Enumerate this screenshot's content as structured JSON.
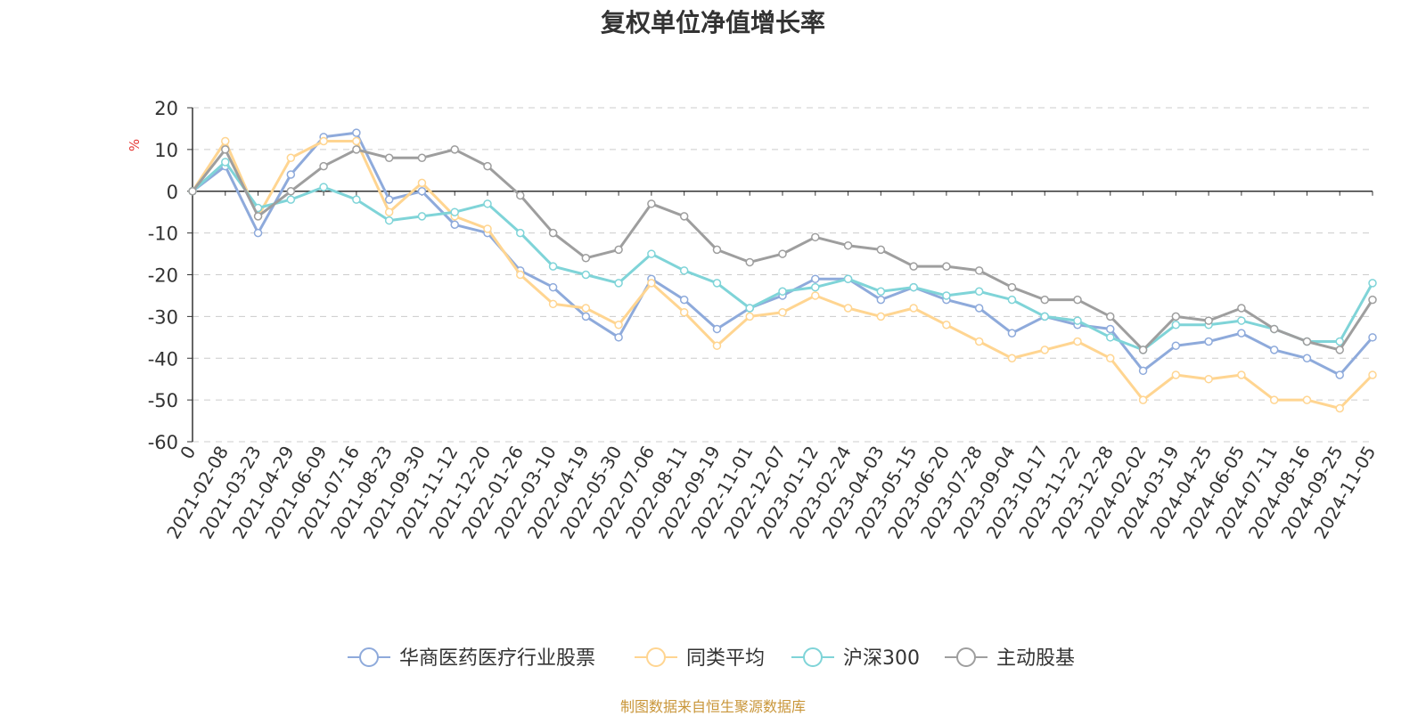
{
  "chart_data": {
    "type": "line",
    "title": "复权单位净值增长率",
    "ylabel": "%",
    "ylim": [
      -60,
      20
    ],
    "yticks": [
      20,
      10,
      0,
      -10,
      -20,
      -30,
      -40,
      -50,
      -60
    ],
    "grid": true,
    "legend_position": "bottom",
    "x_tick_labels": [
      "0",
      "2021-02-08",
      "2021-03-23",
      "2021-04-29",
      "2021-06-09",
      "2021-07-16",
      "2021-08-23",
      "2021-09-30",
      "2021-11-12",
      "2021-12-20",
      "2022-01-26",
      "2022-03-10",
      "2022-04-19",
      "2022-05-30",
      "2022-07-06",
      "2022-08-11",
      "2022-09-19",
      "2022-11-01",
      "2022-12-07",
      "2023-01-12",
      "2023-02-24",
      "2023-04-03",
      "2023-05-15",
      "2023-06-20",
      "2023-07-28",
      "2023-09-04",
      "2023-10-17",
      "2023-11-22",
      "2023-12-28",
      "2024-02-02",
      "2024-03-19",
      "2024-04-25",
      "2024-06-05",
      "2024-07-11",
      "2024-08-16",
      "2024-09-25",
      "2024-11-05"
    ],
    "x": [
      "0",
      "2021-02-08",
      "2021-03-23",
      "2021-04-29",
      "2021-06-09",
      "2021-07-16",
      "2021-08-23",
      "2021-09-30",
      "2021-11-12",
      "2021-12-20",
      "2022-01-26",
      "2022-03-10",
      "2022-04-19",
      "2022-05-30",
      "2022-07-06",
      "2022-08-11",
      "2022-09-19",
      "2022-11-01",
      "2022-12-07",
      "2023-01-12",
      "2023-02-24",
      "2023-04-03",
      "2023-05-15",
      "2023-06-20",
      "2023-07-28",
      "2023-09-04",
      "2023-10-17",
      "2023-11-22",
      "2023-12-28",
      "2024-02-02",
      "2024-03-19",
      "2024-04-25",
      "2024-06-05",
      "2024-07-11",
      "2024-08-16",
      "2024-09-25",
      "2024-11-05"
    ],
    "series": [
      {
        "name": "华商医药医疗行业股票",
        "color": "#8eaadb",
        "values": [
          0,
          6,
          -10,
          4,
          13,
          14,
          -2,
          0,
          -8,
          -10,
          -19,
          -23,
          -30,
          -35,
          -21,
          -26,
          -33,
          -28,
          -25,
          -21,
          -21,
          -26,
          -23,
          -26,
          -28,
          -34,
          -30,
          -32,
          -33,
          -43,
          -37,
          -36,
          -34,
          -38,
          -40,
          -44,
          -35
        ]
      },
      {
        "name": "同类平均",
        "color": "#ffd591",
        "values": [
          0,
          12,
          -6,
          8,
          12,
          12,
          -5,
          2,
          -6,
          -9,
          -20,
          -27,
          -28,
          -32,
          -22,
          -29,
          -37,
          -30,
          -29,
          -25,
          -28,
          -30,
          -28,
          -32,
          -36,
          -40,
          -38,
          -36,
          -40,
          -50,
          -44,
          -45,
          -44,
          -50,
          -50,
          -52,
          -44
        ]
      },
      {
        "name": "沪深300",
        "color": "#7fd4d8",
        "values": [
          0,
          7,
          -4,
          -2,
          1,
          -2,
          -7,
          -6,
          -5,
          -3,
          -10,
          -18,
          -20,
          -22,
          -15,
          -19,
          -22,
          -28,
          -24,
          -23,
          -21,
          -24,
          -23,
          -25,
          -24,
          -26,
          -30,
          -31,
          -35,
          -38,
          -32,
          -32,
          -31,
          -33,
          -36,
          -36,
          -22
        ]
      },
      {
        "name": "主动股基",
        "color": "#9e9e9e",
        "values": [
          0,
          10,
          -6,
          0,
          6,
          10,
          8,
          8,
          10,
          6,
          -1,
          -10,
          -16,
          -14,
          -3,
          -6,
          -14,
          -17,
          -15,
          -11,
          -13,
          -14,
          -18,
          -18,
          -19,
          -23,
          -26,
          -26,
          -30,
          -38,
          -30,
          -31,
          -28,
          -33,
          -36,
          -38,
          -26
        ]
      }
    ]
  },
  "source_note": "制图数据来自恒生聚源数据库"
}
